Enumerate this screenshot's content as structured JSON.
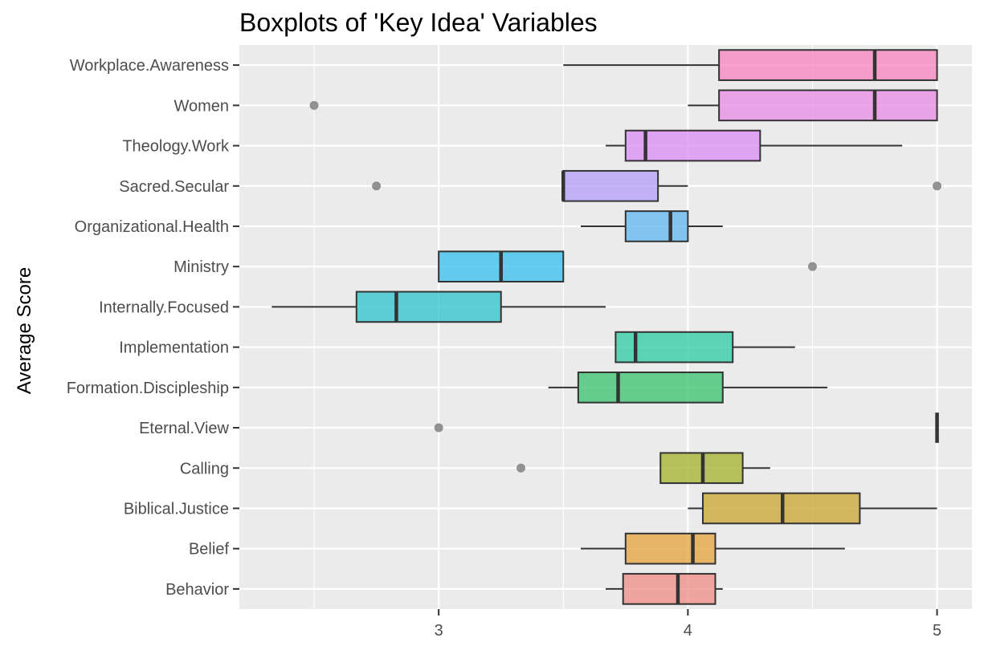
{
  "chart_data": {
    "type": "boxplot",
    "orientation": "horizontal",
    "title": "Boxplots of 'Key Idea' Variables",
    "ylabel": "Average Score",
    "xlabel": "",
    "xlim": [
      2.2,
      5.14
    ],
    "x_ticks": [
      3,
      4,
      5
    ],
    "grid": true,
    "legend": "none",
    "categories": [
      {
        "name": "Workplace.Awareness",
        "whisker_low": 3.5,
        "q1": 4.125,
        "median": 4.75,
        "q3": 5.0,
        "whisker_high": 5.0,
        "outliers": [],
        "color": "#F781BF"
      },
      {
        "name": "Women",
        "whisker_low": 4.0,
        "q1": 4.125,
        "median": 4.75,
        "q3": 5.0,
        "whisker_high": 5.0,
        "outliers": [
          2.5
        ],
        "color": "#EA8AE4"
      },
      {
        "name": "Theology.Work",
        "whisker_low": 3.67,
        "q1": 3.75,
        "median": 3.83,
        "q3": 4.29,
        "whisker_high": 4.86,
        "outliers": [],
        "color": "#D98CF5"
      },
      {
        "name": "Sacred.Secular",
        "whisker_low": 3.5,
        "q1": 3.5,
        "median": 3.5,
        "q3": 3.88,
        "whisker_high": 4.0,
        "outliers": [
          2.75,
          5.0
        ],
        "color": "#B39DF7"
      },
      {
        "name": "Organizational.Health",
        "whisker_low": 3.57,
        "q1": 3.75,
        "median": 3.93,
        "q3": 4.0,
        "whisker_high": 4.14,
        "outliers": [],
        "color": "#5FB6F2"
      },
      {
        "name": "Ministry",
        "whisker_low": 3.0,
        "q1": 3.0,
        "median": 3.25,
        "q3": 3.5,
        "whisker_high": 3.5,
        "outliers": [
          4.5
        ],
        "color": "#34BFEC"
      },
      {
        "name": "Internally.Focused",
        "whisker_low": 2.33,
        "q1": 2.67,
        "median": 2.83,
        "q3": 3.25,
        "whisker_high": 3.67,
        "outliers": [],
        "color": "#2EC3CC"
      },
      {
        "name": "Implementation",
        "whisker_low": 3.71,
        "q1": 3.71,
        "median": 3.79,
        "q3": 4.18,
        "whisker_high": 4.43,
        "outliers": [],
        "color": "#2ECBA3"
      },
      {
        "name": "Formation.Discipleship",
        "whisker_low": 3.44,
        "q1": 3.56,
        "median": 3.72,
        "q3": 4.14,
        "whisker_high": 4.56,
        "outliers": [],
        "color": "#37C16E"
      },
      {
        "name": "Eternal.View",
        "whisker_low": 5.0,
        "q1": 5.0,
        "median": 5.0,
        "q3": 5.0,
        "whisker_high": 5.0,
        "outliers": [
          3.0
        ],
        "color": "#7CC243"
      },
      {
        "name": "Calling",
        "whisker_low": 3.89,
        "q1": 3.89,
        "median": 4.06,
        "q3": 4.22,
        "whisker_high": 4.33,
        "outliers": [
          3.33
        ],
        "color": "#A3B02B"
      },
      {
        "name": "Biblical.Justice",
        "whisker_low": 4.0,
        "q1": 4.06,
        "median": 4.38,
        "q3": 4.69,
        "whisker_high": 5.0,
        "outliers": [],
        "color": "#C9A42E"
      },
      {
        "name": "Belief",
        "whisker_low": 3.57,
        "q1": 3.75,
        "median": 4.02,
        "q3": 4.11,
        "whisker_high": 4.63,
        "outliers": [],
        "color": "#E4A23A"
      },
      {
        "name": "Behavior",
        "whisker_low": 3.67,
        "q1": 3.74,
        "median": 3.96,
        "q3": 4.11,
        "whisker_high": 4.14,
        "outliers": [],
        "color": "#F08B84"
      }
    ]
  }
}
